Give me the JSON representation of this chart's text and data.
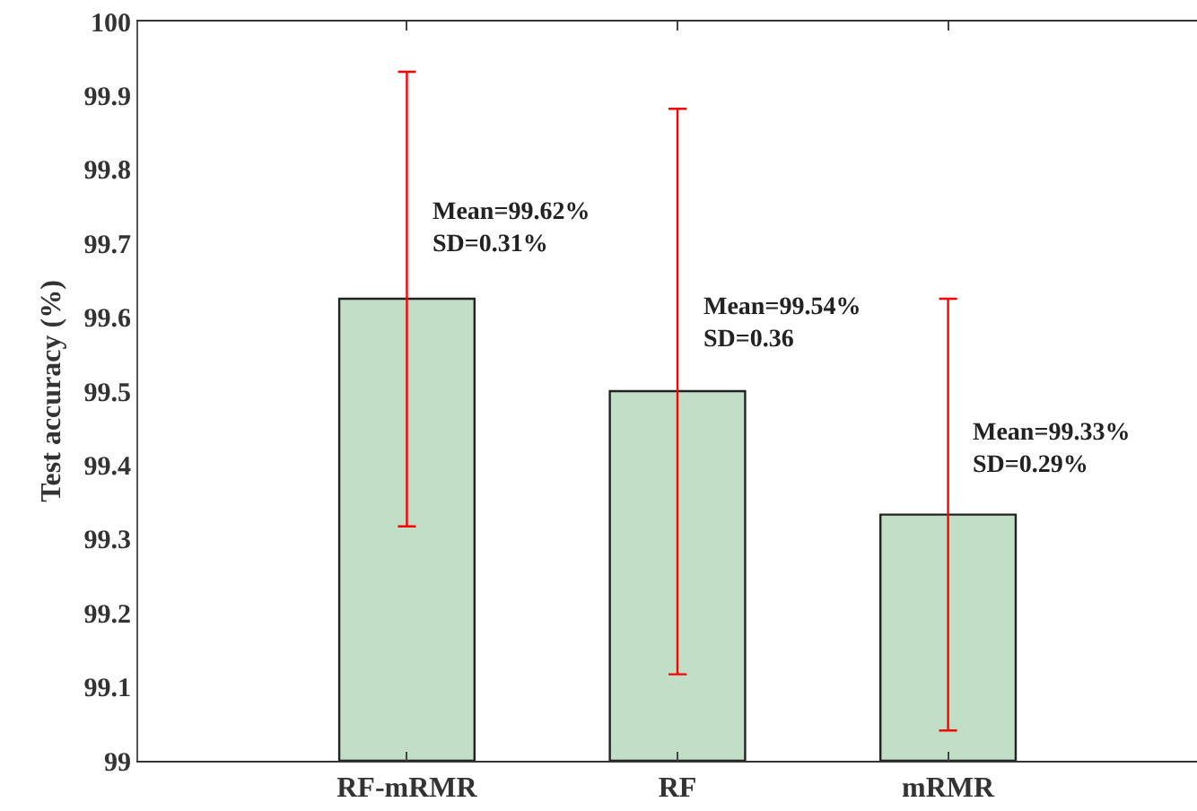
{
  "chart_data": {
    "type": "bar",
    "ylabel": "Test accuracy (%)",
    "categories": [
      "RF-mRMR",
      "RF",
      "mRMR"
    ],
    "values": [
      99.625,
      99.5,
      99.333
    ],
    "errors": [
      [
        99.317,
        99.932
      ],
      [
        99.117,
        99.882
      ],
      [
        99.041,
        99.625
      ]
    ],
    "color": "#c1dec6",
    "ylim": [
      99,
      100
    ],
    "yticks": [
      99,
      99.1,
      99.2,
      99.3,
      99.4,
      99.5,
      99.6,
      99.7,
      99.8,
      99.9,
      100
    ],
    "legend": false,
    "annotations": [
      {
        "text": "Mean=99.62%\nSD=0.31%",
        "x": "RF-mRMR",
        "y": 99.72
      },
      {
        "text": "Mean=99.54%\nSD=0.36",
        "x": "RF",
        "y": 99.59
      },
      {
        "text": "Mean=99.33%\nSD=0.29%",
        "x": "mRMR",
        "y": 99.42
      }
    ]
  }
}
